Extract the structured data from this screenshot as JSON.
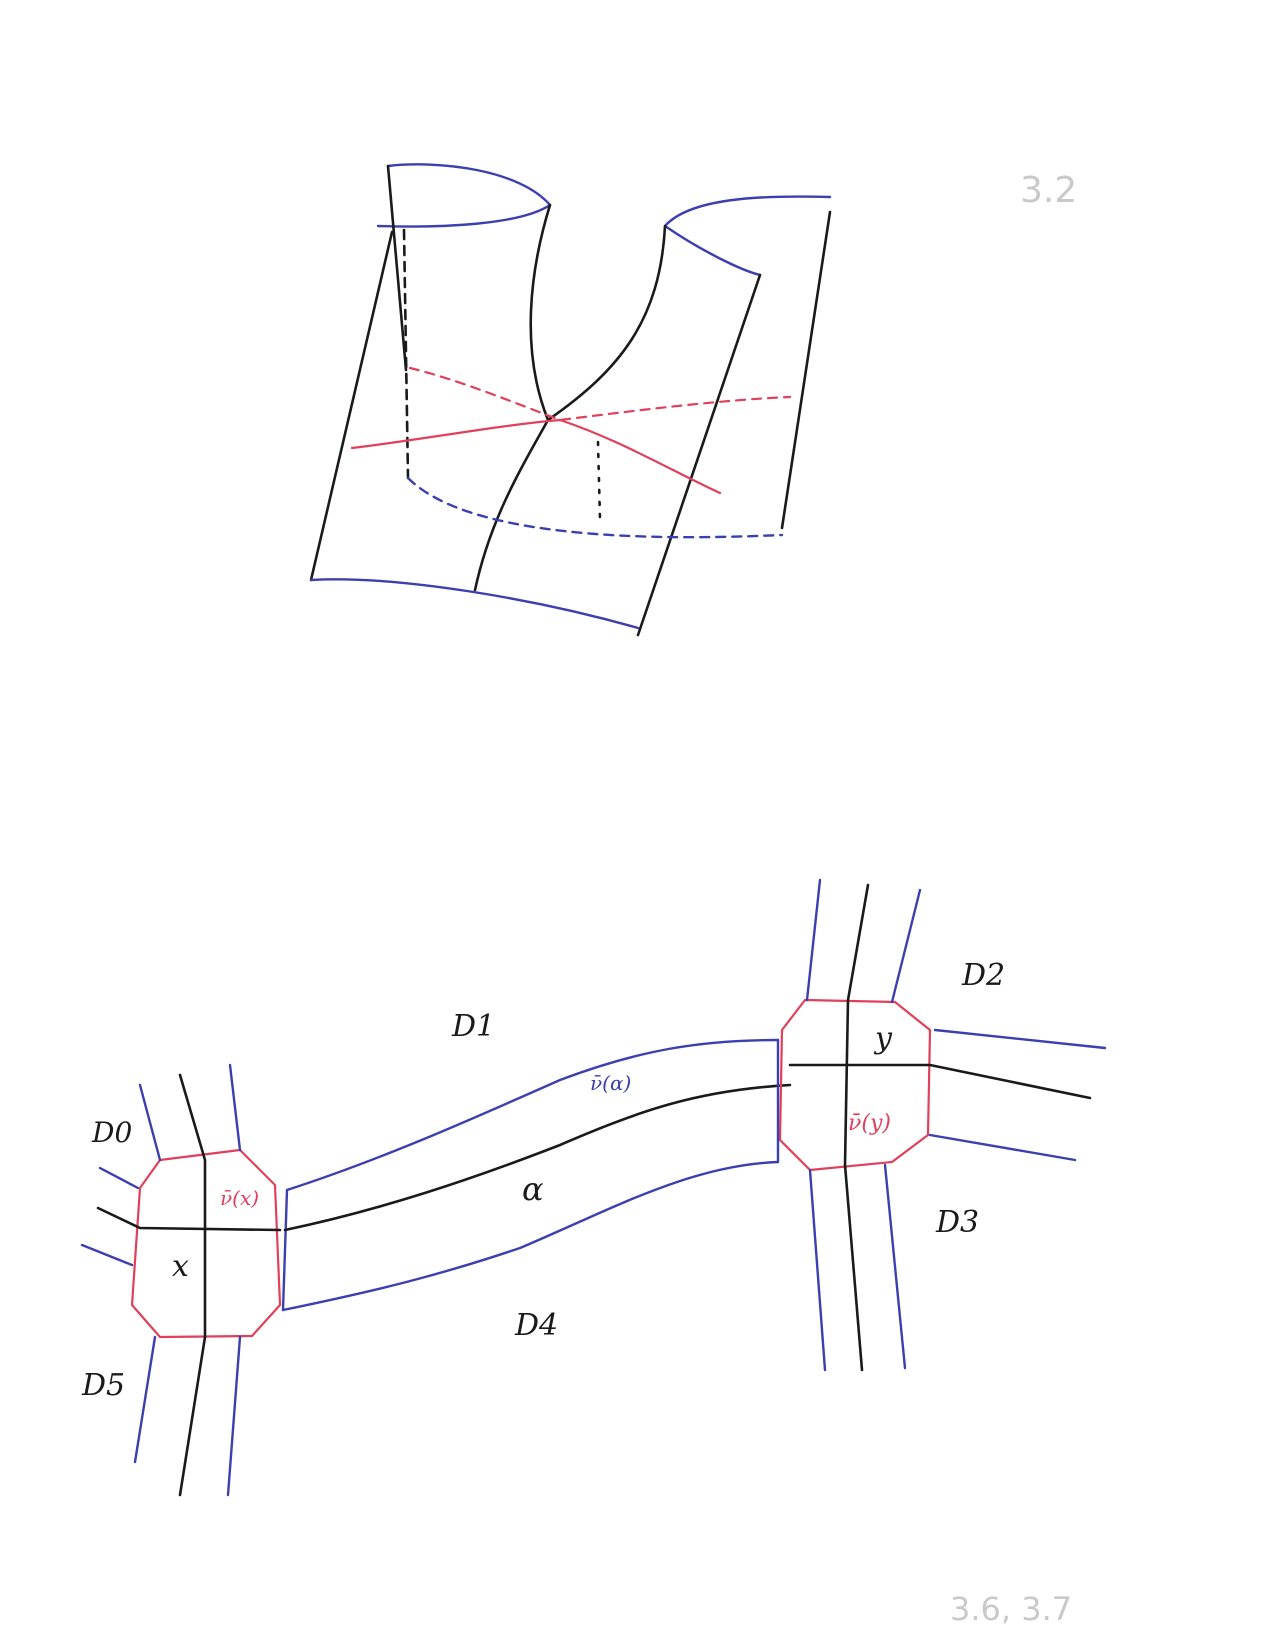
{
  "figure_numbers": {
    "top": "3.2",
    "bottom": "3.6, 3.7"
  },
  "bottom_figure": {
    "disk_labels": {
      "d0": "D0",
      "d1": "D1",
      "d2": "D2",
      "d3": "D3",
      "d4": "D4",
      "d5": "D5"
    },
    "point_labels": {
      "x": "x",
      "y": "y",
      "alpha": "α"
    },
    "neighborhood_labels": {
      "nu_x": "ν̄(x)",
      "nu_y": "ν̄(y)",
      "nu_alpha": "ν̄(α)"
    }
  },
  "colors": {
    "black_ink": "#1a1a1a",
    "blue_ink": "#3b3fb0",
    "red_ink": "#e0405a"
  }
}
